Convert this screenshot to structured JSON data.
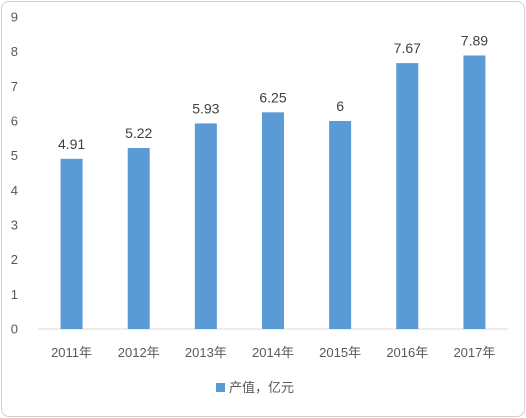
{
  "chart_data": {
    "type": "bar",
    "categories": [
      "2011年",
      "2012年",
      "2013年",
      "2014年",
      "2015年",
      "2016年",
      "2017年"
    ],
    "series": [
      {
        "name": "产值，亿元",
        "values": [
          4.91,
          5.22,
          5.93,
          6.25,
          6,
          7.67,
          7.89
        ]
      }
    ],
    "data_labels": [
      "4.91",
      "5.22",
      "5.93",
      "6.25",
      "6",
      "7.67",
      "7.89"
    ],
    "y_ticks": [
      "0",
      "1",
      "2",
      "3",
      "4",
      "5",
      "6",
      "7",
      "8",
      "9"
    ],
    "ylim": [
      0,
      9
    ],
    "grid": false,
    "legend_position": "bottom",
    "bar_color": "#5b9bd5"
  }
}
